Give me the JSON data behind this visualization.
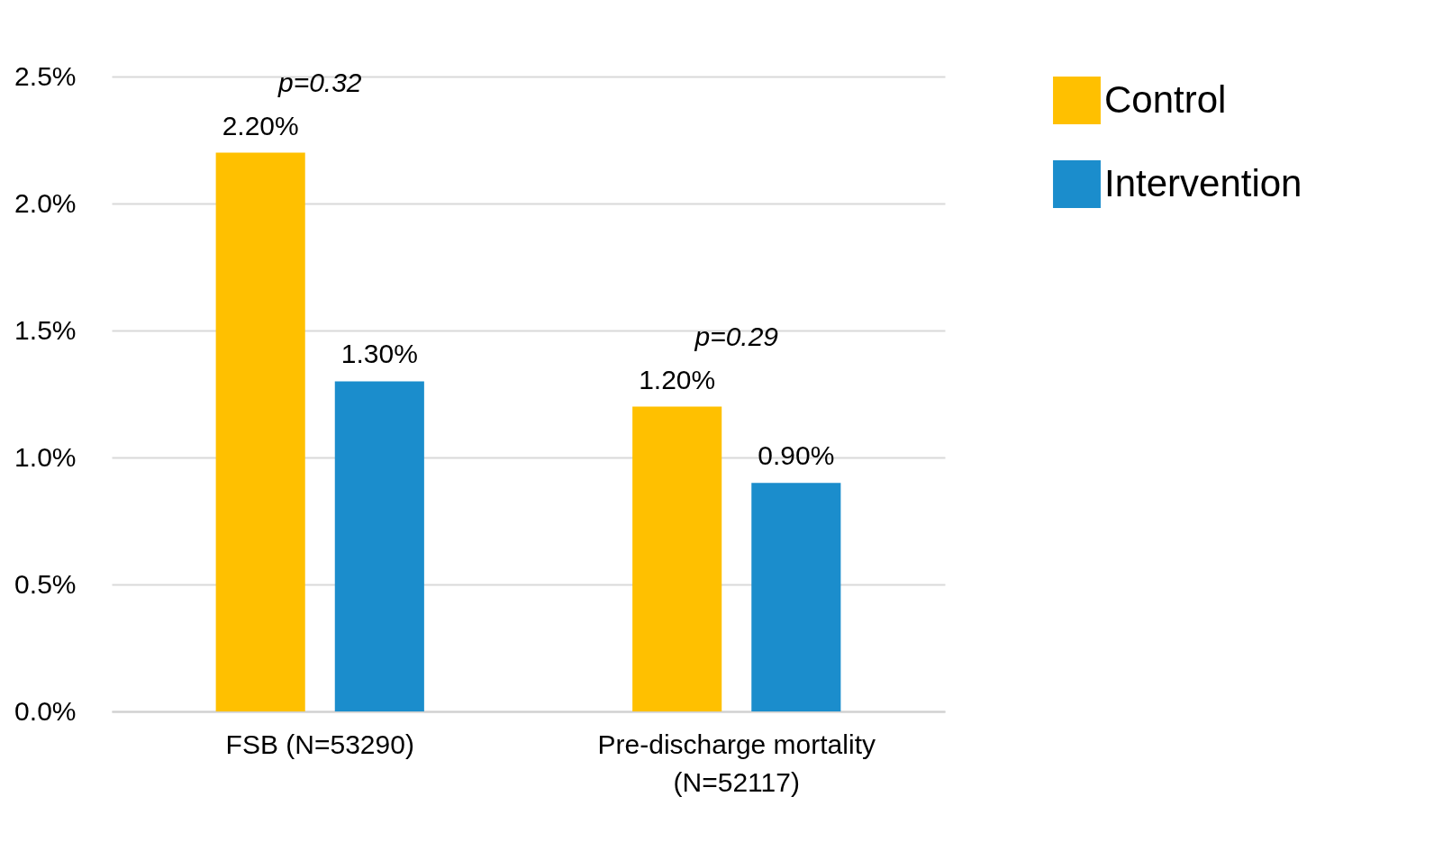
{
  "chart_data": {
    "type": "bar",
    "categories": [
      "FSB (N=53290)",
      "Pre-discharge mortality (N=52117)"
    ],
    "series": [
      {
        "name": "Control",
        "color": "#ffc000",
        "values": [
          2.2,
          1.2
        ],
        "value_labels": [
          "2.20%",
          "1.20%"
        ]
      },
      {
        "name": "Intervention",
        "color": "#1b8dcc",
        "values": [
          1.3,
          0.9
        ],
        "value_labels": [
          "1.30%",
          "0.90%"
        ]
      }
    ],
    "ylim": [
      0,
      2.5
    ],
    "yticks": [
      {
        "value": 0,
        "label": "0.0%"
      },
      {
        "value": 0.5,
        "label": "0.5%"
      },
      {
        "value": 1,
        "label": "1.0%"
      },
      {
        "value": 1.5,
        "label": "1.5%"
      },
      {
        "value": 2,
        "label": "2.0%"
      },
      {
        "value": 2.5,
        "label": "2.5%"
      }
    ],
    "grid": "y",
    "legend": "right",
    "annotations": [
      "p=0.32",
      "p=0.29"
    ]
  }
}
